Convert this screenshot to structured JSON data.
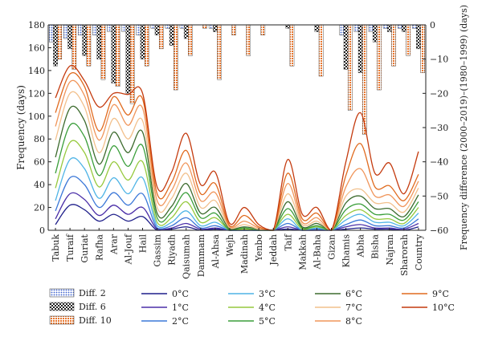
{
  "chart_data": {
    "type": "line",
    "title": "",
    "ylabel_left": "Frequency (days)",
    "ylabel_right": "Frequency difference (2000–2019)–(1980–1999) (days)",
    "ylim_left": [
      0,
      180
    ],
    "yticks_left": [
      "0",
      "20",
      "40",
      "60",
      "80",
      "100",
      "120",
      "140",
      "160",
      "180"
    ],
    "ylim_right": [
      -60,
      0
    ],
    "yticks_right": [
      "0",
      "−10",
      "−20",
      "−30",
      "−40",
      "−50",
      "−60"
    ],
    "grid": false,
    "legend_position": "bottom",
    "categories": [
      "Tabuk",
      "Turaif",
      "Guriat",
      "Rafha",
      "Arar",
      "Al-Jouf",
      "Hail",
      "Gassim",
      "Riyadh",
      "Qaisumah",
      "Dammam",
      "Al-Ahsa",
      "Wejh",
      "Madinah",
      "Yenbo",
      "Jeddah",
      "Taif",
      "Makkah",
      "Al-Baha",
      "Gizan",
      "Khamis",
      "Abha",
      "Bisha",
      "Najran",
      "Sharorah",
      "Country"
    ],
    "series": [
      {
        "name": "0°C",
        "color": "#1f1f8a",
        "values": [
          5,
          22,
          18,
          8,
          14,
          8,
          12,
          0,
          1,
          3,
          0,
          1,
          0,
          0,
          0,
          0,
          1,
          0,
          0,
          0,
          1,
          2,
          1,
          1,
          0,
          3
        ]
      },
      {
        "name": "1°C",
        "color": "#4b2fa8",
        "values": [
          10,
          32,
          27,
          13,
          22,
          14,
          20,
          1,
          2,
          6,
          1,
          2,
          0,
          0,
          0,
          0,
          3,
          0,
          0,
          0,
          3,
          5,
          2,
          2,
          1,
          6
        ]
      },
      {
        "name": "2°C",
        "color": "#3c78d8",
        "values": [
          17,
          46,
          40,
          20,
          33,
          22,
          32,
          2,
          4,
          11,
          2,
          4,
          0,
          0,
          0,
          0,
          6,
          0,
          1,
          0,
          5,
          9,
          4,
          4,
          2,
          10
        ]
      },
      {
        "name": "3°C",
        "color": "#4fb4e6",
        "values": [
          26,
          62,
          54,
          28,
          46,
          32,
          46,
          4,
          7,
          17,
          4,
          7,
          0,
          0,
          0,
          0,
          10,
          0,
          2,
          0,
          9,
          14,
          7,
          7,
          4,
          15
        ]
      },
      {
        "name": "4°C",
        "color": "#96c93d",
        "values": [
          37,
          77,
          68,
          38,
          60,
          44,
          60,
          7,
          11,
          25,
          7,
          11,
          0,
          1,
          0,
          0,
          14,
          1,
          3,
          0,
          13,
          18,
          10,
          10,
          6,
          20
        ]
      },
      {
        "name": "5°C",
        "color": "#3a9e3a",
        "values": [
          50,
          92,
          82,
          48,
          74,
          56,
          74,
          11,
          16,
          33,
          11,
          15,
          0,
          2,
          0,
          0,
          19,
          2,
          4,
          0,
          18,
          23,
          14,
          14,
          9,
          25
        ]
      },
      {
        "name": "6°C",
        "color": "#3d6b2e",
        "values": [
          64,
          107,
          96,
          58,
          86,
          68,
          86,
          15,
          21,
          41,
          15,
          20,
          1,
          3,
          1,
          0,
          25,
          3,
          6,
          0,
          24,
          30,
          19,
          19,
          12,
          31
        ]
      },
      {
        "name": "7°C",
        "color": "#f2c08c",
        "values": [
          79,
          120,
          108,
          68,
          98,
          80,
          96,
          20,
          28,
          50,
          20,
          26,
          2,
          5,
          1,
          0,
          32,
          5,
          8,
          0,
          30,
          36,
          24,
          24,
          16,
          37
        ]
      },
      {
        "name": "8°C",
        "color": "#f0955a",
        "values": [
          91,
          130,
          118,
          79,
          110,
          92,
          107,
          26,
          35,
          59,
          26,
          33,
          3,
          8,
          2,
          0,
          41,
          7,
          11,
          0,
          38,
          54,
          30,
          31,
          21,
          43
        ]
      },
      {
        "name": "9°C",
        "color": "#e06a1e",
        "values": [
          103,
          137,
          126,
          87,
          117,
          101,
          115,
          32,
          42,
          70,
          32,
          41,
          4,
          13,
          3,
          0,
          50,
          10,
          15,
          0,
          48,
          76,
          38,
          39,
          26,
          49
        ]
      },
      {
        "name": "10°C",
        "color": "#c43a0e",
        "values": [
          116,
          144,
          131,
          108,
          120,
          119,
          120,
          38,
          51,
          85,
          40,
          51,
          6,
          20,
          5,
          0,
          62,
          14,
          20,
          0,
          60,
          103,
          50,
          59,
          32,
          69
        ]
      }
    ],
    "bar_series": [
      {
        "name": "Diff. 2",
        "pattern": "dots-blue",
        "values": [
          -5,
          -4,
          -3,
          -3,
          -2,
          -2,
          -3,
          -1,
          -1,
          -1,
          0,
          -1,
          0,
          0,
          0,
          0,
          0,
          0,
          0,
          0,
          -3,
          -2,
          -2,
          -1,
          -1,
          -1
        ]
      },
      {
        "name": "Diff. 6",
        "pattern": "checker-black",
        "values": [
          -12,
          -7,
          -9,
          -10,
          -17,
          -20,
          -10,
          -3,
          -6,
          -4,
          0,
          -2,
          0,
          0,
          0,
          0,
          -1,
          0,
          -2,
          0,
          -13,
          -14,
          -5,
          -2,
          -2,
          -7
        ]
      },
      {
        "name": "Diff. 10",
        "pattern": "grid-orange",
        "values": [
          -10,
          -13,
          -12,
          -16,
          -18,
          -23,
          -12,
          -7,
          -19,
          -9,
          -1,
          -16,
          -3,
          -9,
          -3,
          0,
          -12,
          0,
          -15,
          0,
          -25,
          -32,
          -19,
          -12,
          -9,
          -14
        ]
      }
    ],
    "legend_layout": [
      [
        "Diff. 2",
        "0°C",
        "3°C",
        "6°C",
        "9°C"
      ],
      [
        "Diff. 6",
        "1°C",
        "4°C",
        "7°C",
        "10°C"
      ],
      [
        "Diff. 10",
        "2°C",
        "5°C",
        "8°C",
        ""
      ]
    ]
  }
}
